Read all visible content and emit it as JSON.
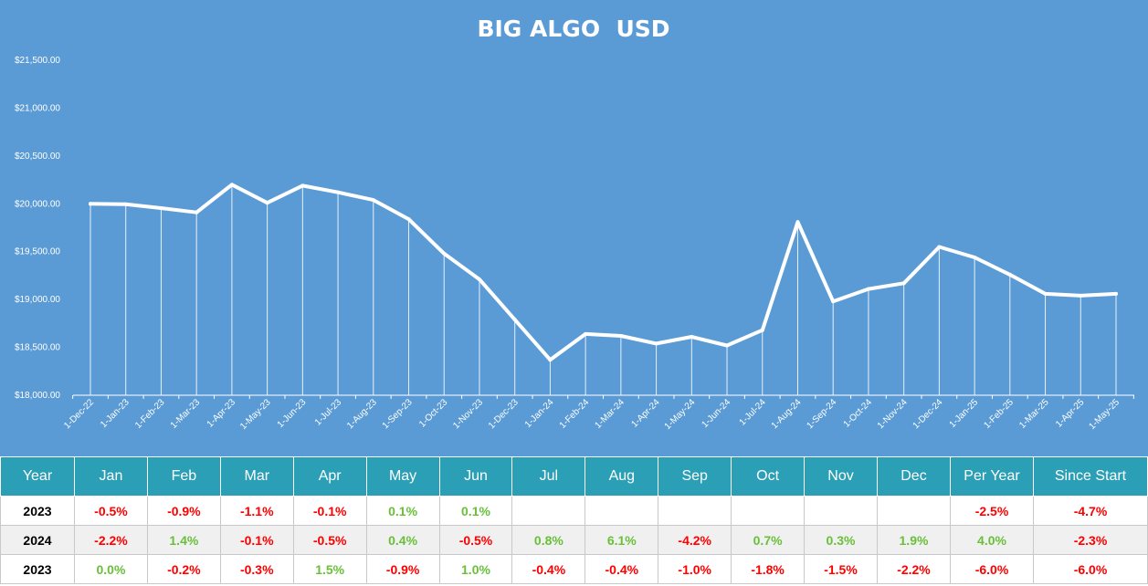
{
  "chart_data": {
    "type": "line",
    "title": "BIG ALGO  USD",
    "xlabel": "",
    "ylabel": "",
    "ylim": [
      18000,
      21500
    ],
    "y_ticks": [
      18000,
      18500,
      19000,
      19500,
      20000,
      20500,
      21000,
      21500
    ],
    "y_tick_labels": [
      "$18,000.00",
      "$18,500.00",
      "$19,000.00",
      "$19,500.00",
      "$20,000.00",
      "$20,500.00",
      "$21,000.00",
      "$21,500.00"
    ],
    "x_labels": [
      "1-Dec-22",
      "1-Jan-23",
      "1-Feb-23",
      "1-Mar-23",
      "1-Apr-23",
      "1-May-23",
      "1-Jun-23",
      "1-Jul-23",
      "1-Aug-23",
      "1-Sep-23",
      "1-Oct-23",
      "1-Nov-23",
      "1-Dec-23",
      "1-Jan-24",
      "1-Feb-24",
      "1-Mar-24",
      "1-Apr-24",
      "1-May-24",
      "1-Jun-24",
      "1-Jul-24",
      "1-Aug-24",
      "1-Sep-24",
      "1-Oct-24",
      "1-Nov-24",
      "1-Dec-24",
      "1-Jan-25",
      "1-Feb-25",
      "1-Mar-25",
      "1-Apr-25",
      "1-May-25"
    ],
    "values": [
      20000,
      19995,
      19955,
      19910,
      20200,
      20010,
      20190,
      20120,
      20040,
      19840,
      19480,
      19210,
      18790,
      18370,
      18640,
      18620,
      18540,
      18610,
      18520,
      18680,
      19810,
      18980,
      19110,
      19170,
      19550,
      19440,
      19260,
      19060,
      19040,
      19060
    ],
    "grid": false,
    "drop_lines": true,
    "colors": {
      "background": "#5b9bd5",
      "line": "#ffffff",
      "text": "#ffffff"
    }
  },
  "table": {
    "headers": [
      "Year",
      "Jan",
      "Feb",
      "Mar",
      "Apr",
      "May",
      "Jun",
      "Jul",
      "Aug",
      "Sep",
      "Oct",
      "Nov",
      "Dec",
      "Per Year",
      "Since Start"
    ],
    "rows": [
      [
        "2023",
        "-0.5%",
        "-0.9%",
        "-1.1%",
        "-0.1%",
        "0.1%",
        "0.1%",
        "",
        "",
        "",
        "",
        "",
        "",
        "-2.5%",
        "-4.7%"
      ],
      [
        "2024",
        "-2.2%",
        "1.4%",
        "-0.1%",
        "-0.5%",
        "0.4%",
        "-0.5%",
        "0.8%",
        "6.1%",
        "-4.2%",
        "0.7%",
        "0.3%",
        "1.9%",
        "4.0%",
        "-2.3%"
      ],
      [
        "2023",
        "0.0%",
        "-0.2%",
        "-0.3%",
        "1.5%",
        "-0.9%",
        "1.0%",
        "-0.4%",
        "-0.4%",
        "-1.0%",
        "-1.8%",
        "-1.5%",
        "-2.2%",
        "-6.0%",
        "-6.0%"
      ]
    ],
    "colors": {
      "header_bg": "#2b9fb6",
      "negative": "#ff0000",
      "positive": "#6abf3a"
    }
  }
}
